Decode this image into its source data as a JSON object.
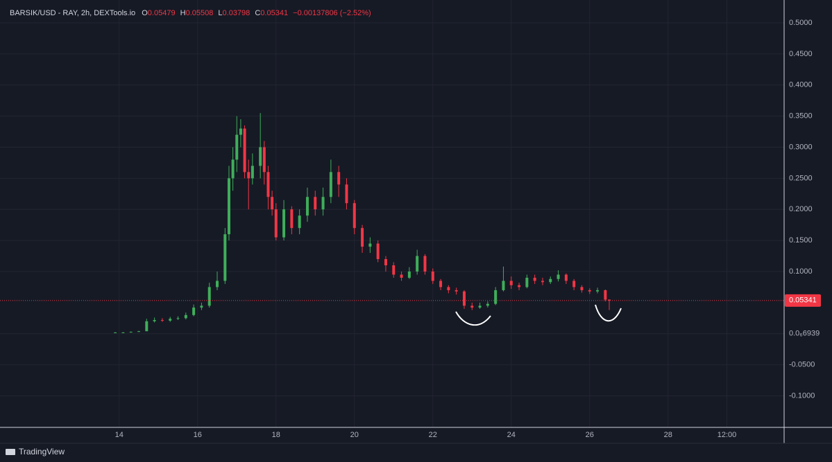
{
  "header": {
    "symbol": "BARSIK/USD - RAY, 2h, DEXTools.io",
    "ohlc_labels": [
      "O",
      "H",
      "L",
      "C"
    ],
    "change": "−0.00137806 (−2.52%)"
  },
  "brand": "TradingView",
  "chart_data": {
    "type": "candlestick",
    "x": [
      13.9,
      14.1,
      14.3,
      14.5,
      14.7,
      14.9,
      15.1,
      15.3,
      15.5,
      15.7,
      15.9,
      16.1,
      16.3,
      16.5,
      16.7,
      16.8,
      16.9,
      17.0,
      17.1,
      17.2,
      17.3,
      17.4,
      17.6,
      17.7,
      17.8,
      17.9,
      18.0,
      18.2,
      18.4,
      18.6,
      18.8,
      19.0,
      19.2,
      19.4,
      19.6,
      19.8,
      20.0,
      20.2,
      20.4,
      20.6,
      20.8,
      21.0,
      21.2,
      21.4,
      21.6,
      21.8,
      22.0,
      22.2,
      22.4,
      22.6,
      22.8,
      23.0,
      23.2,
      23.4,
      23.6,
      23.8,
      24.0,
      24.2,
      24.4,
      24.6,
      24.8,
      25.0,
      25.2,
      25.4,
      25.6,
      25.8,
      26.0,
      26.2,
      26.4,
      26.5
    ],
    "open": [
      0.0018,
      0.002,
      0.002,
      0.003,
      0.004,
      0.02,
      0.022,
      0.021,
      0.024,
      0.025,
      0.03,
      0.042,
      0.045,
      0.075,
      0.085,
      0.16,
      0.25,
      0.28,
      0.32,
      0.33,
      0.26,
      0.25,
      0.27,
      0.3,
      0.26,
      0.22,
      0.2,
      0.155,
      0.2,
      0.17,
      0.19,
      0.22,
      0.2,
      0.22,
      0.26,
      0.24,
      0.21,
      0.17,
      0.14,
      0.145,
      0.12,
      0.11,
      0.095,
      0.09,
      0.1,
      0.125,
      0.1,
      0.085,
      0.075,
      0.07,
      0.068,
      0.045,
      0.042,
      0.045,
      0.048,
      0.07,
      0.085,
      0.078,
      0.075,
      0.09,
      0.085,
      0.083,
      0.088,
      0.095,
      0.085,
      0.075,
      0.07,
      0.068,
      0.07,
      0.05479
    ],
    "high": [
      0.0025,
      0.0025,
      0.0035,
      0.0045,
      0.024,
      0.026,
      0.025,
      0.027,
      0.028,
      0.034,
      0.047,
      0.05,
      0.082,
      0.1,
      0.17,
      0.27,
      0.3,
      0.35,
      0.345,
      0.335,
      0.28,
      0.29,
      0.355,
      0.31,
      0.27,
      0.23,
      0.21,
      0.215,
      0.205,
      0.2,
      0.235,
      0.23,
      0.235,
      0.28,
      0.27,
      0.25,
      0.215,
      0.175,
      0.155,
      0.15,
      0.125,
      0.115,
      0.1,
      0.107,
      0.135,
      0.128,
      0.105,
      0.088,
      0.078,
      0.074,
      0.07,
      0.05,
      0.05,
      0.052,
      0.075,
      0.108,
      0.092,
      0.082,
      0.095,
      0.095,
      0.09,
      0.092,
      0.102,
      0.097,
      0.088,
      0.078,
      0.073,
      0.074,
      0.071,
      0.05508
    ],
    "low": [
      0.0015,
      0.0015,
      0.0018,
      0.0028,
      0.0038,
      0.018,
      0.019,
      0.019,
      0.022,
      0.023,
      0.028,
      0.038,
      0.042,
      0.07,
      0.08,
      0.15,
      0.23,
      0.26,
      0.3,
      0.25,
      0.2,
      0.24,
      0.25,
      0.24,
      0.2,
      0.19,
      0.15,
      0.15,
      0.16,
      0.16,
      0.18,
      0.19,
      0.19,
      0.21,
      0.22,
      0.2,
      0.16,
      0.13,
      0.13,
      0.115,
      0.1,
      0.09,
      0.085,
      0.088,
      0.095,
      0.095,
      0.08,
      0.07,
      0.065,
      0.063,
      0.04,
      0.038,
      0.04,
      0.042,
      0.046,
      0.068,
      0.072,
      0.07,
      0.073,
      0.08,
      0.078,
      0.08,
      0.084,
      0.08,
      0.07,
      0.066,
      0.064,
      0.065,
      0.052,
      0.03798
    ],
    "close": [
      0.002,
      0.002,
      0.003,
      0.004,
      0.02,
      0.022,
      0.021,
      0.024,
      0.025,
      0.03,
      0.042,
      0.045,
      0.075,
      0.085,
      0.16,
      0.25,
      0.28,
      0.32,
      0.33,
      0.26,
      0.25,
      0.27,
      0.3,
      0.26,
      0.22,
      0.2,
      0.155,
      0.2,
      0.17,
      0.19,
      0.22,
      0.2,
      0.22,
      0.26,
      0.24,
      0.21,
      0.17,
      0.14,
      0.145,
      0.12,
      0.11,
      0.095,
      0.09,
      0.1,
      0.125,
      0.1,
      0.085,
      0.075,
      0.07,
      0.068,
      0.045,
      0.042,
      0.045,
      0.048,
      0.07,
      0.085,
      0.078,
      0.075,
      0.09,
      0.085,
      0.083,
      0.088,
      0.095,
      0.085,
      0.075,
      0.07,
      0.068,
      0.07,
      0.05479,
      0.05341
    ],
    "up_color": "#3fae5a",
    "down_color": "#f23645",
    "xlim": [
      10.96,
      30.96
    ],
    "xticks": [
      14,
      16,
      18,
      20,
      22,
      24,
      26,
      28,
      {
        "value": 29.5,
        "label": "12:00"
      }
    ],
    "ylim": [
      -0.1507,
      0.5368
    ],
    "yticks": [
      {
        "value": 0.5,
        "label": "0.5000"
      },
      {
        "value": 0.45,
        "label": "0.4500"
      },
      {
        "value": 0.4,
        "label": "0.4000"
      },
      {
        "value": 0.35,
        "label": "0.3500"
      },
      {
        "value": 0.3,
        "label": "0.3000"
      },
      {
        "value": 0.25,
        "label": "0.2500"
      },
      {
        "value": 0.2,
        "label": "0.2000"
      },
      {
        "value": 0.15,
        "label": "0.1500"
      },
      {
        "value": 0.1,
        "label": "0.1000"
      },
      {
        "value": 6.939e-07,
        "label": "0.0₆6939"
      },
      {
        "value": -0.05,
        "label": "-0.0500"
      },
      {
        "value": -0.1,
        "label": "-0.1000"
      }
    ],
    "grid": true
  }
}
